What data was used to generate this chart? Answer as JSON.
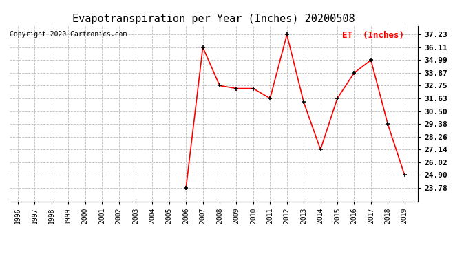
{
  "title": "Evapotranspiration per Year (Inches) 20200508",
  "copyright": "Copyright 2020 Cartronics.com",
  "legend_label": "ET  (Inches)",
  "years": [
    1996,
    1997,
    1998,
    1999,
    2000,
    2001,
    2002,
    2003,
    2004,
    2005,
    2006,
    2007,
    2008,
    2009,
    2010,
    2011,
    2012,
    2013,
    2014,
    2015,
    2016,
    2017,
    2018,
    2019
  ],
  "values": [
    null,
    null,
    null,
    null,
    null,
    null,
    null,
    null,
    null,
    null,
    23.78,
    36.11,
    32.75,
    32.5,
    32.5,
    31.63,
    37.23,
    31.3,
    27.14,
    31.63,
    33.87,
    34.99,
    29.38,
    24.9
  ],
  "yticks": [
    23.78,
    24.9,
    26.02,
    27.14,
    28.26,
    29.38,
    30.5,
    31.63,
    32.75,
    33.87,
    34.99,
    36.11,
    37.23
  ],
  "ylim": [
    22.6,
    38.0
  ],
  "xlim_min": 1995.5,
  "xlim_max": 2019.8,
  "line_color": "red",
  "marker_color": "black",
  "grid_color": "#bbbbbb",
  "background_color": "#ffffff",
  "title_fontsize": 11,
  "copyright_fontsize": 7,
  "legend_fontsize": 9,
  "ytick_fontsize": 8,
  "xtick_fontsize": 7
}
